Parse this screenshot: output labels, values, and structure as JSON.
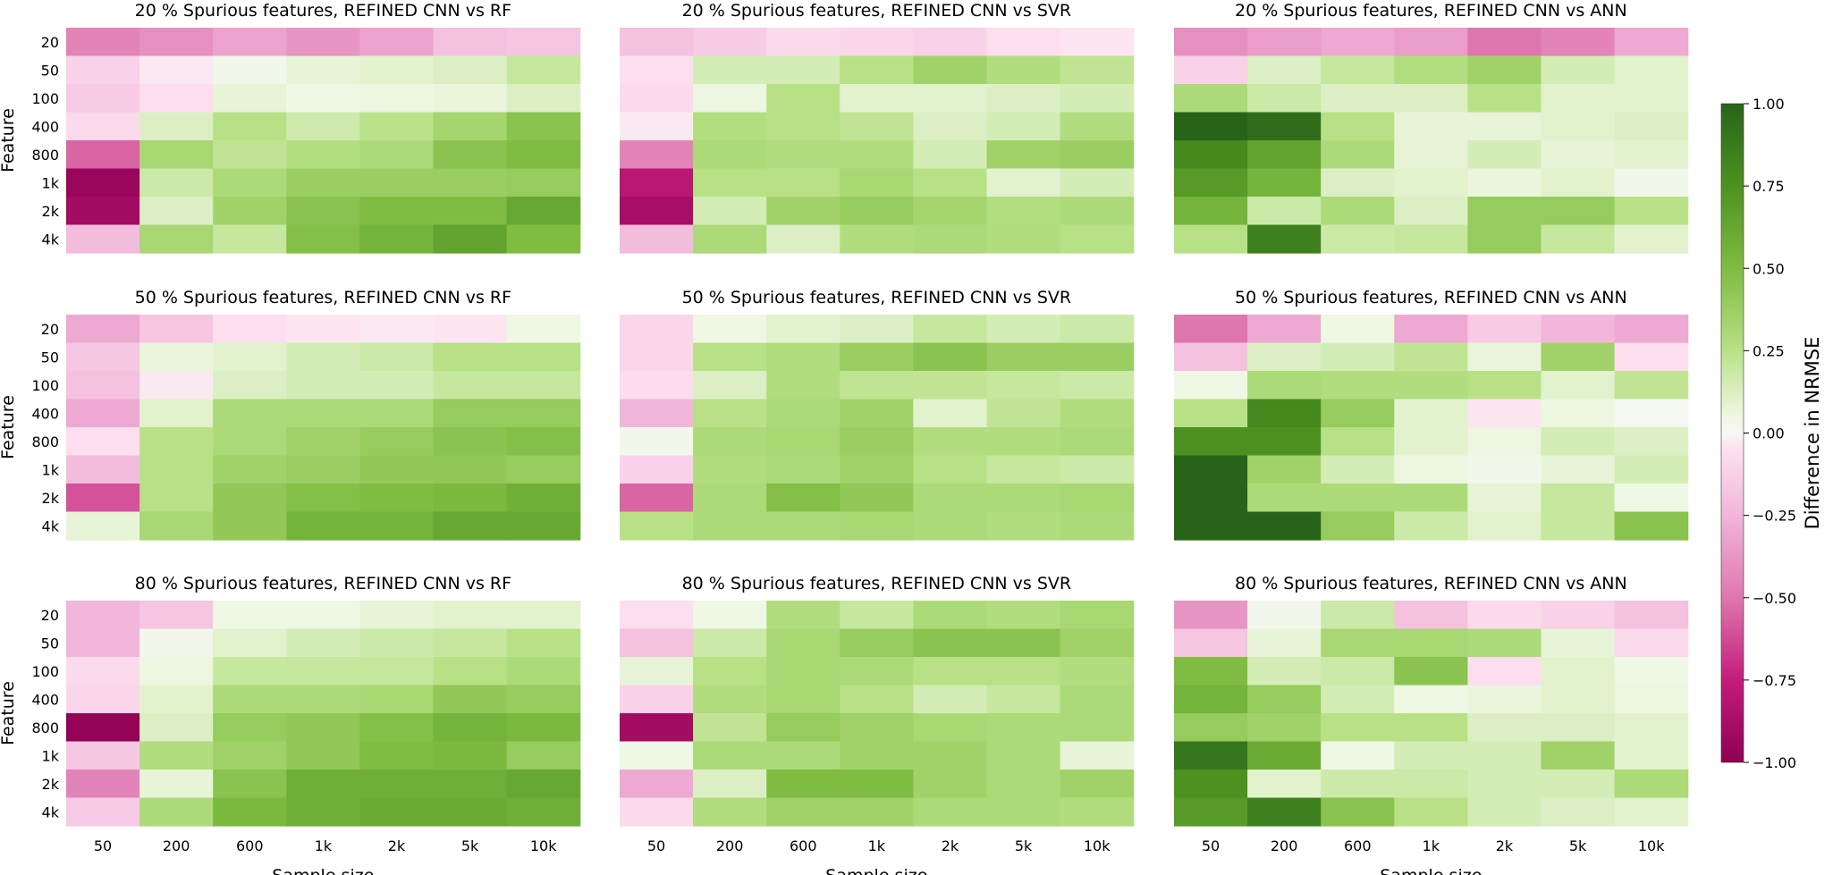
{
  "chart_data": {
    "type": "heatmap",
    "colormap": "PiYG",
    "vmin": -1.0,
    "vmax": 1.0,
    "colorbar": {
      "label": "Difference in NRMSE",
      "ticks": [
        "1.00",
        "0.75",
        "0.50",
        "0.25",
        "0.00",
        "−0.25",
        "−0.50",
        "−0.75",
        "−1.00"
      ],
      "tick_values": [
        1.0,
        0.75,
        0.5,
        0.25,
        0.0,
        -0.25,
        -0.5,
        -0.75,
        -1.0
      ]
    },
    "xlabel": "Sample size",
    "ylabel": "Feature",
    "x_categories": [
      "50",
      "200",
      "600",
      "1k",
      "2k",
      "5k",
      "10k"
    ],
    "y_categories": [
      "20",
      "50",
      "100",
      "400",
      "800",
      "1k",
      "2k",
      "4k"
    ],
    "panels": [
      {
        "title": "20 % Spurious features, REFINED CNN vs RF",
        "values": [
          [
            -0.45,
            -0.4,
            -0.32,
            -0.38,
            -0.32,
            -0.2,
            -0.18
          ],
          [
            -0.12,
            -0.03,
            0.03,
            0.08,
            0.1,
            0.12,
            0.2
          ],
          [
            -0.15,
            -0.06,
            0.08,
            0.05,
            0.06,
            0.07,
            0.12
          ],
          [
            -0.08,
            0.12,
            0.25,
            0.17,
            0.24,
            0.33,
            0.45
          ],
          [
            -0.55,
            0.32,
            0.22,
            0.27,
            0.3,
            0.45,
            0.5
          ],
          [
            -0.95,
            0.18,
            0.3,
            0.38,
            0.38,
            0.38,
            0.4
          ],
          [
            -0.9,
            0.12,
            0.35,
            0.45,
            0.5,
            0.5,
            0.62
          ],
          [
            -0.22,
            0.32,
            0.2,
            0.48,
            0.55,
            0.65,
            0.5
          ]
        ]
      },
      {
        "title": "20 % Spurious features, REFINED CNN vs SVR",
        "values": [
          [
            -0.2,
            -0.15,
            -0.08,
            -0.1,
            -0.12,
            -0.06,
            -0.04
          ],
          [
            -0.06,
            0.15,
            0.15,
            0.25,
            0.35,
            0.28,
            0.22
          ],
          [
            -0.08,
            0.06,
            0.25,
            0.1,
            0.1,
            0.12,
            0.15
          ],
          [
            -0.03,
            0.27,
            0.25,
            0.22,
            0.12,
            0.15,
            0.28
          ],
          [
            -0.45,
            0.3,
            0.28,
            0.28,
            0.15,
            0.35,
            0.38
          ],
          [
            -0.8,
            0.25,
            0.25,
            0.32,
            0.25,
            0.1,
            0.15
          ],
          [
            -0.88,
            0.15,
            0.35,
            0.4,
            0.33,
            0.27,
            0.3
          ],
          [
            -0.22,
            0.3,
            0.12,
            0.28,
            0.3,
            0.28,
            0.25
          ]
        ]
      },
      {
        "title": "20 % Spurious features, REFINED CNN vs ANN",
        "values": [
          [
            -0.4,
            -0.35,
            -0.3,
            -0.35,
            -0.5,
            -0.45,
            -0.3
          ],
          [
            -0.12,
            0.12,
            0.2,
            0.27,
            0.35,
            0.15,
            0.1
          ],
          [
            0.3,
            0.18,
            0.12,
            0.12,
            0.25,
            0.1,
            0.1
          ],
          [
            1.0,
            0.95,
            0.25,
            0.08,
            0.08,
            0.1,
            0.12
          ],
          [
            0.8,
            0.65,
            0.3,
            0.08,
            0.15,
            0.08,
            0.1
          ],
          [
            0.7,
            0.55,
            0.12,
            0.1,
            0.07,
            0.1,
            0.03
          ],
          [
            0.55,
            0.18,
            0.3,
            0.12,
            0.4,
            0.4,
            0.25
          ],
          [
            0.25,
            0.85,
            0.18,
            0.2,
            0.4,
            0.2,
            0.1
          ]
        ]
      },
      {
        "title": "50 % Spurious features, REFINED CNN vs RF",
        "values": [
          [
            -0.3,
            -0.18,
            -0.06,
            -0.04,
            -0.03,
            -0.04,
            0.05
          ],
          [
            -0.17,
            0.07,
            0.1,
            0.15,
            0.18,
            0.25,
            0.25
          ],
          [
            -0.2,
            -0.03,
            0.12,
            0.15,
            0.15,
            0.2,
            0.2
          ],
          [
            -0.3,
            0.1,
            0.3,
            0.3,
            0.3,
            0.4,
            0.4
          ],
          [
            -0.06,
            0.25,
            0.3,
            0.35,
            0.4,
            0.45,
            0.48
          ],
          [
            -0.22,
            0.25,
            0.35,
            0.38,
            0.42,
            0.42,
            0.4
          ],
          [
            -0.6,
            0.25,
            0.42,
            0.48,
            0.5,
            0.52,
            0.58
          ],
          [
            0.08,
            0.32,
            0.42,
            0.55,
            0.55,
            0.62,
            0.62
          ]
        ]
      },
      {
        "title": "50 % Spurious features, REFINED CNN vs SVR",
        "values": [
          [
            -0.1,
            0.05,
            0.1,
            0.12,
            0.2,
            0.15,
            0.18
          ],
          [
            -0.1,
            0.25,
            0.28,
            0.38,
            0.45,
            0.38,
            0.38
          ],
          [
            -0.07,
            0.12,
            0.28,
            0.22,
            0.22,
            0.2,
            0.18
          ],
          [
            -0.25,
            0.25,
            0.3,
            0.35,
            0.1,
            0.22,
            0.28
          ],
          [
            0.03,
            0.3,
            0.32,
            0.38,
            0.28,
            0.28,
            0.3
          ],
          [
            -0.12,
            0.28,
            0.3,
            0.35,
            0.25,
            0.2,
            0.18
          ],
          [
            -0.55,
            0.3,
            0.48,
            0.42,
            0.3,
            0.3,
            0.32
          ],
          [
            0.25,
            0.3,
            0.3,
            0.32,
            0.3,
            0.28,
            0.3
          ]
        ]
      },
      {
        "title": "50 % Spurious features, REFINED CNN vs ANN",
        "values": [
          [
            -0.5,
            -0.3,
            0.05,
            -0.3,
            -0.15,
            -0.25,
            -0.3
          ],
          [
            -0.2,
            0.12,
            0.15,
            0.22,
            0.07,
            0.35,
            -0.06
          ],
          [
            0.05,
            0.3,
            0.28,
            0.28,
            0.25,
            0.1,
            0.22
          ],
          [
            0.25,
            0.8,
            0.4,
            0.1,
            -0.04,
            0.06,
            0.02
          ],
          [
            0.75,
            0.75,
            0.25,
            0.1,
            0.06,
            0.15,
            0.12
          ],
          [
            1.0,
            0.35,
            0.15,
            0.06,
            0.04,
            0.08,
            0.15
          ],
          [
            1.0,
            0.3,
            0.3,
            0.3,
            0.08,
            0.2,
            0.05
          ],
          [
            1.0,
            1.0,
            0.4,
            0.18,
            0.1,
            0.2,
            0.45
          ]
        ]
      },
      {
        "title": "80 % Spurious features, REFINED CNN vs RF",
        "values": [
          [
            -0.25,
            -0.18,
            0.05,
            0.05,
            0.08,
            0.1,
            0.1
          ],
          [
            -0.25,
            0.03,
            0.1,
            0.15,
            0.18,
            0.2,
            0.25
          ],
          [
            -0.08,
            0.06,
            0.2,
            0.2,
            0.2,
            0.25,
            0.3
          ],
          [
            -0.1,
            0.1,
            0.3,
            0.3,
            0.32,
            0.42,
            0.4
          ],
          [
            -0.98,
            0.12,
            0.4,
            0.42,
            0.48,
            0.55,
            0.52
          ],
          [
            -0.17,
            0.28,
            0.35,
            0.42,
            0.5,
            0.52,
            0.4
          ],
          [
            -0.45,
            0.08,
            0.45,
            0.58,
            0.58,
            0.58,
            0.62
          ],
          [
            -0.15,
            0.3,
            0.52,
            0.58,
            0.6,
            0.6,
            0.58
          ]
        ]
      },
      {
        "title": "80 % Spurious features, REFINED CNN vs SVR",
        "values": [
          [
            -0.06,
            0.05,
            0.28,
            0.2,
            0.3,
            0.28,
            0.32
          ],
          [
            -0.2,
            0.18,
            0.32,
            0.4,
            0.45,
            0.45,
            0.35
          ],
          [
            0.08,
            0.25,
            0.32,
            0.3,
            0.25,
            0.25,
            0.28
          ],
          [
            -0.12,
            0.28,
            0.32,
            0.25,
            0.15,
            0.2,
            0.3
          ],
          [
            -0.9,
            0.22,
            0.4,
            0.35,
            0.32,
            0.3,
            0.3
          ],
          [
            0.05,
            0.3,
            0.3,
            0.35,
            0.35,
            0.3,
            0.08
          ],
          [
            -0.3,
            0.12,
            0.5,
            0.5,
            0.35,
            0.3,
            0.35
          ],
          [
            -0.08,
            0.28,
            0.35,
            0.35,
            0.3,
            0.3,
            0.28
          ]
        ]
      },
      {
        "title": "80 % Spurious features, REFINED CNN vs ANN",
        "values": [
          [
            -0.38,
            0.03,
            0.18,
            -0.2,
            -0.08,
            -0.12,
            -0.2
          ],
          [
            -0.18,
            0.08,
            0.32,
            0.32,
            0.3,
            0.08,
            -0.08
          ],
          [
            0.5,
            0.15,
            0.18,
            0.45,
            -0.06,
            0.1,
            0.05
          ],
          [
            0.55,
            0.4,
            0.15,
            0.05,
            0.07,
            0.1,
            0.06
          ],
          [
            0.4,
            0.35,
            0.25,
            0.25,
            0.12,
            0.12,
            0.1
          ],
          [
            0.9,
            0.6,
            0.05,
            0.15,
            0.15,
            0.35,
            0.1
          ],
          [
            0.75,
            0.1,
            0.18,
            0.18,
            0.15,
            0.15,
            0.3
          ],
          [
            0.7,
            0.85,
            0.45,
            0.25,
            0.15,
            0.12,
            0.1
          ]
        ]
      }
    ]
  }
}
